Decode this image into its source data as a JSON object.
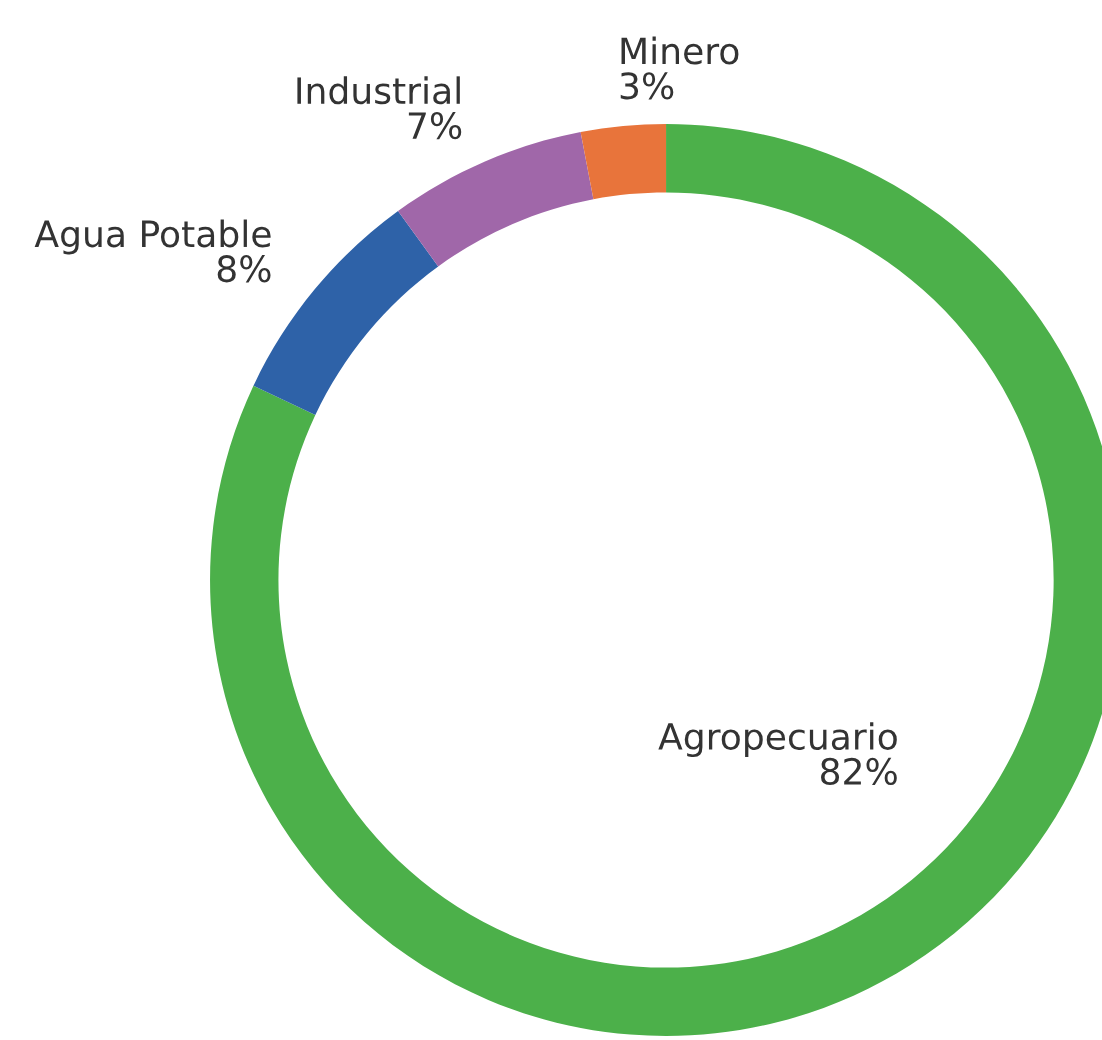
{
  "chart_data": {
    "type": "donut",
    "categories": [
      "Agropecuario",
      "Agua Potable",
      "Industrial",
      "Minero"
    ],
    "values": [
      82,
      8,
      7,
      3
    ],
    "value_labels": [
      "82%",
      "8%",
      "7%",
      "3%"
    ],
    "colors": [
      "#4cb04a",
      "#2e62a8",
      "#a067a9",
      "#e8743b"
    ],
    "legend": false
  }
}
